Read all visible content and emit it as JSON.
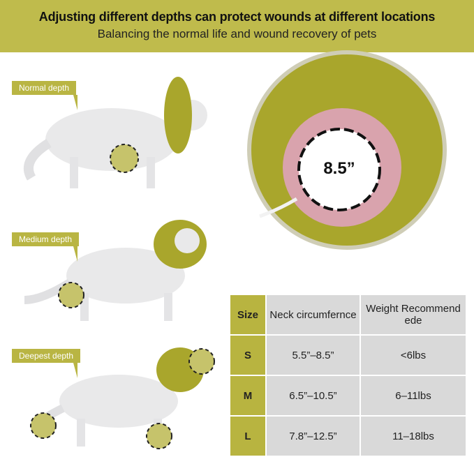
{
  "header": {
    "title": "Adjusting different depths can protect wounds at different locations",
    "subtitle": "Balancing the normal life and wound recovery of pets"
  },
  "depths": [
    {
      "label": "Normal depth"
    },
    {
      "label": "Medium depth"
    },
    {
      "label": "Deepest depth"
    }
  ],
  "collar_closeup": {
    "size_label": "8.5”"
  },
  "colors": {
    "accent": "#bfbb4c",
    "collar": "#a9a62c",
    "ring": "#d9a3ad",
    "table_cell": "#d9d9d9"
  },
  "size_table": {
    "headers": [
      "Size",
      "Neck circumfernce",
      "Weight Recommend ede"
    ],
    "rows": [
      [
        "S",
        "5.5”–8.5”",
        "<6lbs"
      ],
      [
        "M",
        "6.5”–10.5”",
        "6–11lbs"
      ],
      [
        "L",
        "7.8”–12.5”",
        "11–18lbs"
      ]
    ]
  }
}
